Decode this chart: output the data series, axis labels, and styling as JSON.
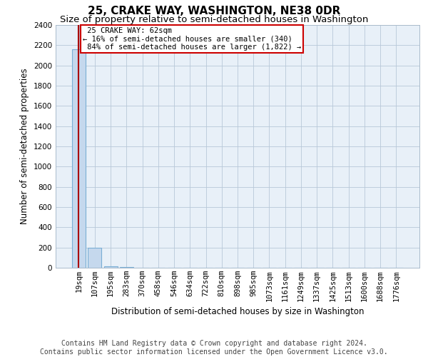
{
  "title": "25, CRAKE WAY, WASHINGTON, NE38 0DR",
  "subtitle": "Size of property relative to semi-detached houses in Washington",
  "xlabel": "Distribution of semi-detached houses by size in Washington",
  "ylabel": "Number of semi-detached properties",
  "property_size": 62,
  "property_label": "25 CRAKE WAY: 62sqm",
  "pct_smaller": 16,
  "pct_larger": 84,
  "n_smaller": 340,
  "n_larger": 1822,
  "bin_labels": [
    "19sqm",
    "107sqm",
    "195sqm",
    "283sqm",
    "370sqm",
    "458sqm",
    "546sqm",
    "634sqm",
    "722sqm",
    "810sqm",
    "898sqm",
    "985sqm",
    "1073sqm",
    "1161sqm",
    "1249sqm",
    "1337sqm",
    "1425sqm",
    "1513sqm",
    "1600sqm",
    "1688sqm",
    "1776sqm"
  ],
  "bin_values": [
    2162,
    200,
    15,
    5,
    2,
    1,
    1,
    1,
    0,
    0,
    1,
    0,
    0,
    1,
    0,
    1,
    0,
    0,
    0,
    0,
    0
  ],
  "bar_color": "#c5d8ed",
  "bar_edge_color": "#7aaed4",
  "plot_bg_color": "#e8f0f8",
  "vline_color": "#aa0000",
  "annotation_box_color": "#cc0000",
  "footer_line1": "Contains HM Land Registry data © Crown copyright and database right 2024.",
  "footer_line2": "Contains public sector information licensed under the Open Government Licence v3.0.",
  "ylim": [
    0,
    2400
  ],
  "yticks": [
    0,
    200,
    400,
    600,
    800,
    1000,
    1200,
    1400,
    1600,
    1800,
    2000,
    2200,
    2400
  ],
  "title_fontsize": 11,
  "subtitle_fontsize": 9.5,
  "axis_label_fontsize": 8.5,
  "tick_fontsize": 7.5,
  "annotation_fontsize": 7.5,
  "footer_fontsize": 7
}
